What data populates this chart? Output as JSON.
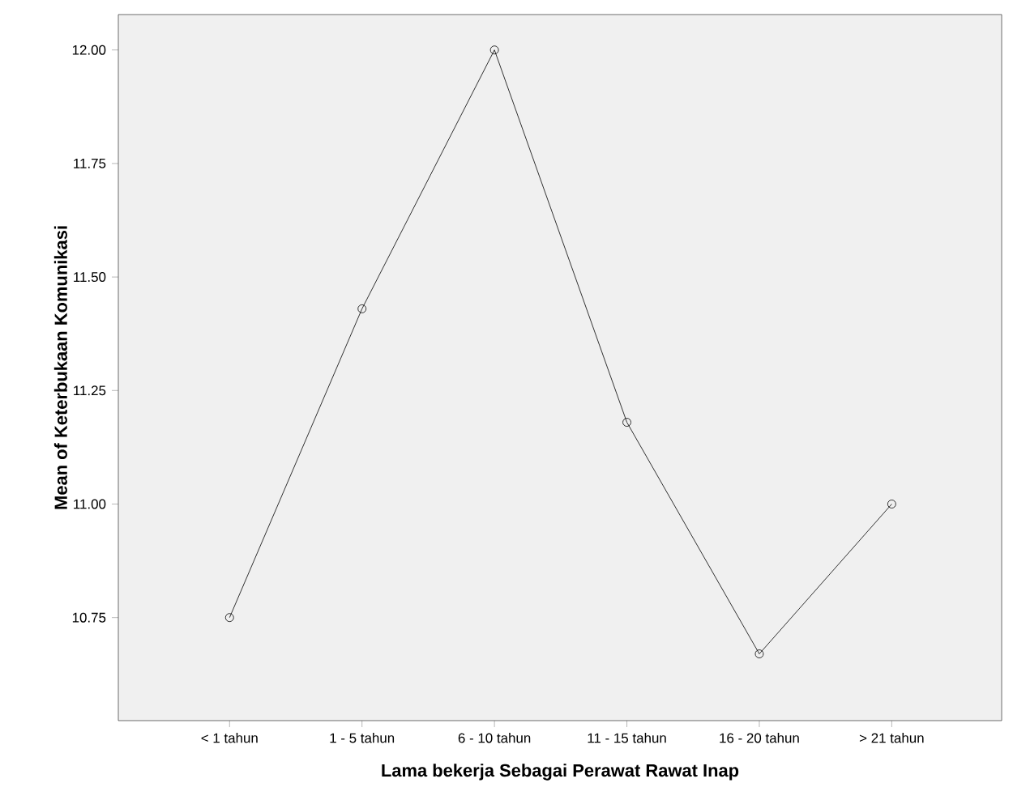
{
  "chart_data": {
    "type": "line",
    "xlabel": "Lama bekerja Sebagai Perawat Rawat Inap",
    "ylabel": "Mean of Keterbukaan Komunikasi",
    "categories": [
      "< 1 tahun",
      "1 - 5 tahun",
      "6 - 10 tahun",
      "11 - 15 tahun",
      "16 - 20 tahun",
      "> 21 tahun"
    ],
    "values": [
      10.75,
      11.43,
      12.0,
      11.18,
      10.67,
      11.0
    ],
    "color": "#000000",
    "marker": "circle",
    "line_style": "solid",
    "grid": false,
    "ylim": [
      10.523,
      12.078
    ],
    "yticks": [
      {
        "value": 10.75,
        "label": "10.75"
      },
      {
        "value": 11.0,
        "label": "11.00"
      },
      {
        "value": 11.25,
        "label": "11.25"
      },
      {
        "value": 11.5,
        "label": "11.50"
      },
      {
        "value": 11.75,
        "label": "11.75"
      },
      {
        "value": 12.0,
        "label": "12.00"
      }
    ]
  }
}
